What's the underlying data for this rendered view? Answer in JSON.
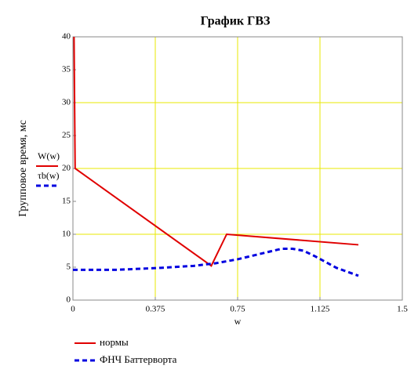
{
  "chart_data": {
    "type": "line",
    "title": "График ГВЗ",
    "x_label": "w",
    "y_label": "Групповое время, мс",
    "series": [
      {
        "name": "нормы",
        "trace_label": "W(w)",
        "color": "#e00000",
        "dash": false,
        "x": [
          0.005,
          0.01,
          0.63,
          0.7,
          1.3
        ],
        "values": [
          40,
          20,
          5.2,
          10,
          8.4
        ]
      },
      {
        "name": "ФНЧ Баттерворта",
        "trace_label": "τb(w)",
        "color": "#0000e0",
        "dash": true,
        "x": [
          0,
          0.2,
          0.4,
          0.55,
          0.65,
          0.75,
          0.85,
          0.95,
          1.0,
          1.05,
          1.1,
          1.2,
          1.3
        ],
        "values": [
          4.6,
          4.6,
          4.9,
          5.2,
          5.6,
          6.2,
          7.0,
          7.8,
          7.8,
          7.5,
          6.7,
          4.9,
          3.7
        ]
      }
    ],
    "xlim": [
      0,
      1.5
    ],
    "xticks": [
      0,
      0.375,
      0.75,
      1.125,
      1.5
    ],
    "ylim": [
      0,
      40
    ],
    "yticks": [
      0,
      5,
      10,
      15,
      20,
      25,
      30,
      35,
      40
    ],
    "xgrid": [
      0.375,
      0.75,
      1.125
    ],
    "ygrid": [
      10,
      20,
      30
    ],
    "grid_color": "#e8e800"
  }
}
